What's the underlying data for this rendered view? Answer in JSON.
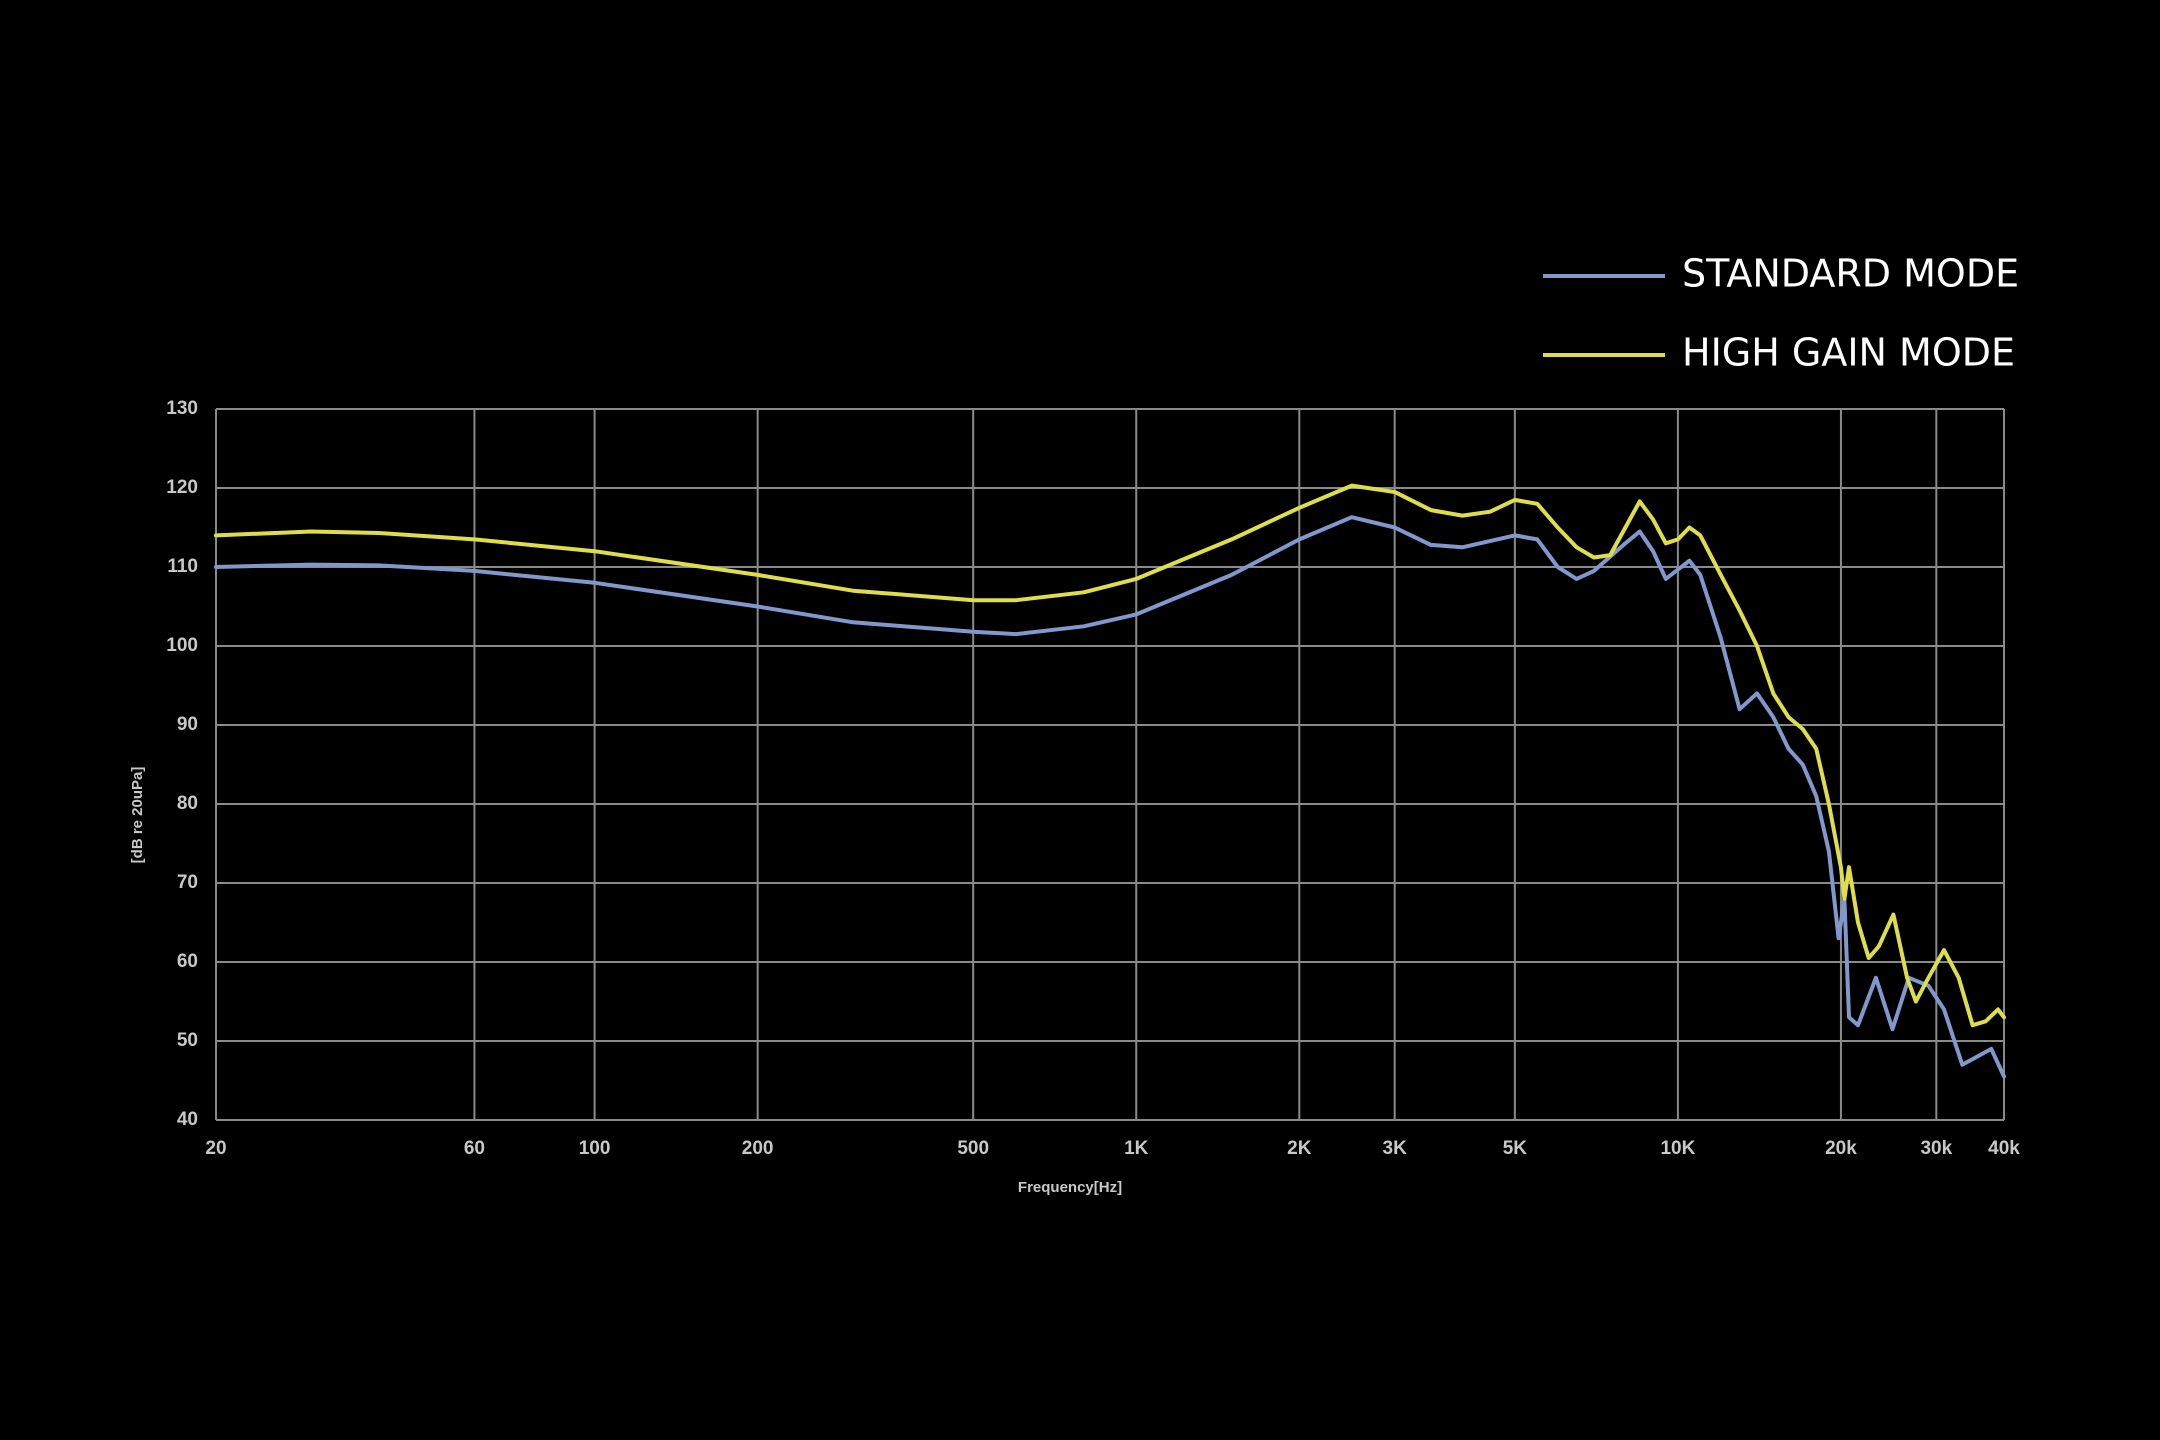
{
  "chart_data": {
    "type": "line",
    "xlabel": "Frequency[Hz]",
    "ylabel": "[dB re 20uPa]",
    "xscale": "log",
    "grid": true,
    "legend": "upper right",
    "xlim": [
      20,
      40000
    ],
    "ylim": [
      40,
      130
    ],
    "xticks": [
      20,
      60,
      100,
      200,
      500,
      {
        "value": 1000,
        "label": "1K"
      },
      {
        "value": 2000,
        "label": "2K"
      },
      {
        "value": 3000,
        "label": "3K"
      },
      {
        "value": 5000,
        "label": "5K"
      },
      {
        "value": 10000,
        "label": "10K"
      },
      {
        "value": 20000,
        "label": "20k"
      },
      {
        "value": 30000,
        "label": "30k"
      },
      {
        "value": 40000,
        "label": "40k"
      }
    ],
    "yticks": [
      40,
      50,
      60,
      70,
      80,
      90,
      100,
      110,
      120,
      130
    ],
    "series": [
      {
        "name": "STANDARD MODE",
        "color": "#8098cc",
        "x": [
          20,
          30,
          40,
          60,
          100,
          200,
          300,
          500,
          600,
          800,
          1000,
          1500,
          2000,
          2500,
          3000,
          3500,
          4000,
          5000,
          5500,
          6000,
          6500,
          7000,
          8000,
          8500,
          9000,
          9500,
          10500,
          11000,
          12000,
          13000,
          14000,
          15000,
          16000,
          17000,
          18000,
          19000,
          19800,
          20300,
          20700,
          21500,
          23200,
          24900,
          26700,
          29000,
          31000,
          33500,
          37900,
          40000
        ],
        "values": [
          110,
          110.3,
          110.2,
          109.5,
          108,
          105,
          103,
          101.8,
          101.5,
          102.5,
          104,
          109,
          113.5,
          116.3,
          115,
          112.8,
          112.5,
          114,
          113.5,
          110,
          108.5,
          109.5,
          113,
          114.5,
          112,
          108.5,
          110.8,
          109,
          101,
          92,
          94,
          91,
          87,
          85,
          81,
          74,
          63,
          68,
          53,
          52,
          58,
          51.5,
          58,
          57,
          54,
          47,
          49,
          45.5
        ]
      },
      {
        "name": "HIGH GAIN MODE",
        "color": "#dede4a",
        "x": [
          20,
          30,
          40,
          60,
          100,
          200,
          300,
          500,
          600,
          800,
          1000,
          1500,
          2000,
          2500,
          3000,
          3500,
          4000,
          4500,
          5000,
          5500,
          6000,
          6500,
          7000,
          7500,
          8000,
          8500,
          9000,
          9500,
          10000,
          10500,
          11000,
          12000,
          13000,
          14000,
          15000,
          16000,
          17000,
          18000,
          19000,
          20000,
          20300,
          20700,
          21500,
          22500,
          23500,
          25000,
          26500,
          27500,
          29000,
          31000,
          33000,
          35000,
          37000,
          39000,
          40000
        ],
        "values": [
          114,
          114.5,
          114.3,
          113.5,
          112,
          109,
          107,
          105.8,
          105.8,
          106.8,
          108.5,
          113.5,
          117.5,
          120.3,
          119.5,
          117.2,
          116.5,
          117,
          118.5,
          118,
          115,
          112.5,
          111.2,
          111.5,
          115,
          118.3,
          116,
          113,
          113.5,
          115,
          114,
          109,
          104.5,
          100,
          94,
          91,
          89.5,
          87,
          80,
          72,
          68,
          72,
          65,
          60.5,
          62,
          66,
          58,
          55,
          58,
          61.5,
          58,
          52,
          52.5,
          54,
          53
        ]
      }
    ]
  }
}
